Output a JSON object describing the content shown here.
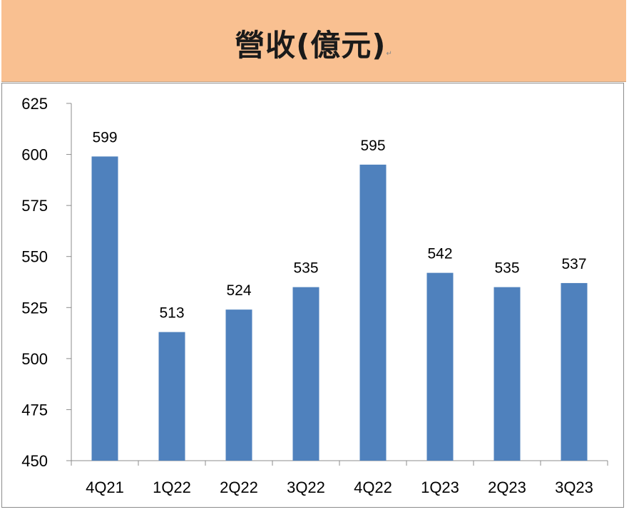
{
  "chart_data": {
    "type": "bar",
    "title": "營收(億元)",
    "categories": [
      "4Q21",
      "1Q22",
      "2Q22",
      "3Q22",
      "4Q22",
      "1Q23",
      "2Q23",
      "3Q23"
    ],
    "values": [
      599,
      513,
      524,
      535,
      595,
      542,
      535,
      537
    ],
    "ylim": [
      450,
      625
    ],
    "yticks": [
      450,
      475,
      500,
      525,
      550,
      575,
      600,
      625
    ],
    "xlabel": "",
    "ylabel": "",
    "grid": false,
    "bar_color": "#4f81bd"
  }
}
